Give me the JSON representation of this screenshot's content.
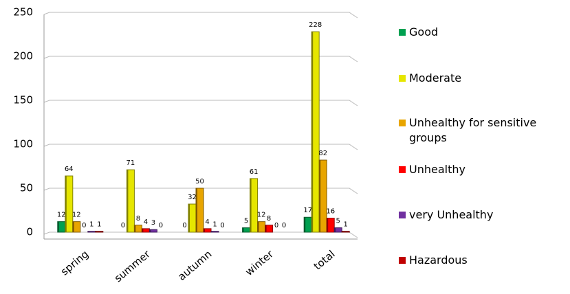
{
  "chart_data": {
    "type": "bar",
    "categories": [
      "spring",
      "summer",
      "autumn",
      "winter",
      "total"
    ],
    "series": [
      {
        "name": "Good",
        "color": "#00a050",
        "values": [
          12,
          0,
          0,
          5,
          17
        ]
      },
      {
        "name": "Moderate",
        "color": "#e6e600",
        "values": [
          64,
          71,
          32,
          61,
          228
        ]
      },
      {
        "name": "Unhealthy for sensitive groups",
        "color": "#e8a500",
        "values": [
          12,
          8,
          50,
          12,
          82
        ]
      },
      {
        "name": "Unhealthy",
        "color": "#ff0000",
        "values": [
          0,
          4,
          4,
          8,
          16
        ]
      },
      {
        "name": "very Unhealthy",
        "color": "#7030a0",
        "values": [
          1,
          3,
          1,
          0,
          5
        ]
      },
      {
        "name": "Hazardous",
        "color": "#c00000",
        "values": [
          1,
          0,
          0,
          0,
          1
        ]
      }
    ],
    "ylim": [
      0,
      250
    ],
    "yticks": [
      0,
      50,
      100,
      150,
      200,
      250
    ],
    "grid": true,
    "legend": "right"
  }
}
